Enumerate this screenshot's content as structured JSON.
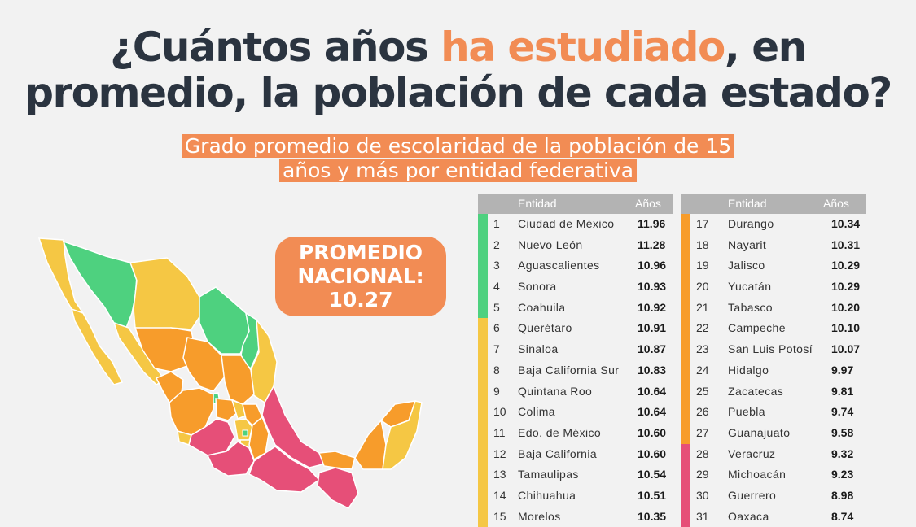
{
  "title": {
    "part1": "¿Cuántos años ",
    "highlight": "ha estudiado",
    "part2": ", en",
    "line2": "promedio, la población de cada estado?"
  },
  "subtitle": {
    "line1": "Grado promedio de escolaridad de la población de 15",
    "line2": "años y más por entidad federativa"
  },
  "promedio": {
    "line1": "PROMEDIO",
    "line2": "NACIONAL:",
    "line3": "10.27"
  },
  "colors": {
    "green": "#4ed17f",
    "yellow": "#f5c744",
    "orange": "#f79c2b",
    "pink": "#e64f78",
    "accent": "#f28c54",
    "header": "#b3b3b3"
  },
  "chart_data": {
    "type": "table",
    "columns": [
      "Entidad",
      "Años"
    ],
    "rows": [
      {
        "rank": "1",
        "name": "Ciudad de México",
        "value": "11.96",
        "group": "green"
      },
      {
        "rank": "2",
        "name": "Nuevo León",
        "value": "11.28",
        "group": "green"
      },
      {
        "rank": "3",
        "name": "Aguascalientes",
        "value": "10.96",
        "group": "green"
      },
      {
        "rank": "4",
        "name": "Sonora",
        "value": "10.93",
        "group": "green"
      },
      {
        "rank": "5",
        "name": "Coahuila",
        "value": "10.92",
        "group": "green"
      },
      {
        "rank": "6",
        "name": "Querétaro",
        "value": "10.91",
        "group": "yellow"
      },
      {
        "rank": "7",
        "name": "Sinaloa",
        "value": "10.87",
        "group": "yellow"
      },
      {
        "rank": "8",
        "name": "Baja California Sur",
        "value": "10.83",
        "group": "yellow"
      },
      {
        "rank": "9",
        "name": "Quintana Roo",
        "value": "10.64",
        "group": "yellow"
      },
      {
        "rank": "10",
        "name": "Colima",
        "value": "10.64",
        "group": "yellow"
      },
      {
        "rank": "11",
        "name": "Edo. de México",
        "value": "10.60",
        "group": "yellow"
      },
      {
        "rank": "12",
        "name": "Baja California",
        "value": "10.60",
        "group": "yellow"
      },
      {
        "rank": "13",
        "name": "Tamaulipas",
        "value": "10.54",
        "group": "yellow"
      },
      {
        "rank": "14",
        "name": "Chihuahua",
        "value": "10.51",
        "group": "yellow"
      },
      {
        "rank": "15",
        "name": "Morelos",
        "value": "10.35",
        "group": "yellow"
      },
      {
        "rank": "17",
        "name": "Durango",
        "value": "10.34",
        "group": "orange"
      },
      {
        "rank": "18",
        "name": "Nayarit",
        "value": "10.31",
        "group": "orange"
      },
      {
        "rank": "19",
        "name": "Jalisco",
        "value": "10.29",
        "group": "orange"
      },
      {
        "rank": "20",
        "name": "Yucatán",
        "value": "10.29",
        "group": "orange"
      },
      {
        "rank": "21",
        "name": "Tabasco",
        "value": "10.20",
        "group": "orange"
      },
      {
        "rank": "22",
        "name": "Campeche",
        "value": "10.10",
        "group": "orange"
      },
      {
        "rank": "23",
        "name": "San Luis Potosí",
        "value": "10.07",
        "group": "orange"
      },
      {
        "rank": "24",
        "name": "Hidalgo",
        "value": "9.97",
        "group": "orange"
      },
      {
        "rank": "25",
        "name": "Zacatecas",
        "value": "9.81",
        "group": "orange"
      },
      {
        "rank": "26",
        "name": "Puebla",
        "value": "9.74",
        "group": "orange"
      },
      {
        "rank": "27",
        "name": "Guanajuato",
        "value": "9.58",
        "group": "orange"
      },
      {
        "rank": "28",
        "name": "Veracruz",
        "value": "9.32",
        "group": "pink"
      },
      {
        "rank": "29",
        "name": "Michoacán",
        "value": "9.23",
        "group": "pink"
      },
      {
        "rank": "30",
        "name": "Guerrero",
        "value": "8.98",
        "group": "pink"
      },
      {
        "rank": "31",
        "name": "Oaxaca",
        "value": "8.74",
        "group": "pink"
      }
    ]
  }
}
